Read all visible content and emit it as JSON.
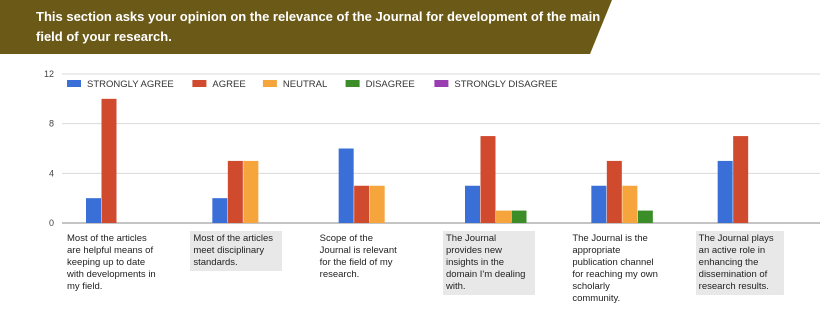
{
  "header": {
    "text": "This section asks your opinion on the relevance of the Journal for development of the main field of your research."
  },
  "chart_data": {
    "type": "bar",
    "title": "",
    "xlabel": "",
    "ylabel": "",
    "ylim": [
      0,
      12
    ],
    "yticks": [
      "0",
      "4",
      "8",
      "12"
    ],
    "legend_position": "top-left",
    "grid": true,
    "categories": [
      "Most of the articles are helpful means of keeping up to date with developments in my field.",
      "Most of the articles meet disciplinary standards.",
      "Scope of the Journal is relevant for the field of my research.",
      "The Journal provides new insights in the domain I'm dealing with.",
      "The Journal is the appropriate publication channel for reaching my own scholarly community.",
      "The Journal plays an active role in enhancing the dissemination of research results."
    ],
    "series": [
      {
        "name": "STRONGLY AGREE",
        "color": "#3a6fd8",
        "values": [
          2,
          2,
          6,
          3,
          3,
          5
        ]
      },
      {
        "name": "AGREE",
        "color": "#d04a2e",
        "values": [
          10,
          5,
          3,
          7,
          5,
          7
        ]
      },
      {
        "name": "NEUTRAL",
        "color": "#f6a43c",
        "values": [
          0,
          5,
          3,
          1,
          3,
          0
        ]
      },
      {
        "name": "DISAGREE",
        "color": "#3b8d28",
        "values": [
          0,
          0,
          0,
          1,
          1,
          0
        ]
      },
      {
        "name": "STRONGLY DISAGREE",
        "color": "#9a3db0",
        "values": [
          0,
          0,
          0,
          0,
          0,
          0
        ]
      }
    ]
  }
}
